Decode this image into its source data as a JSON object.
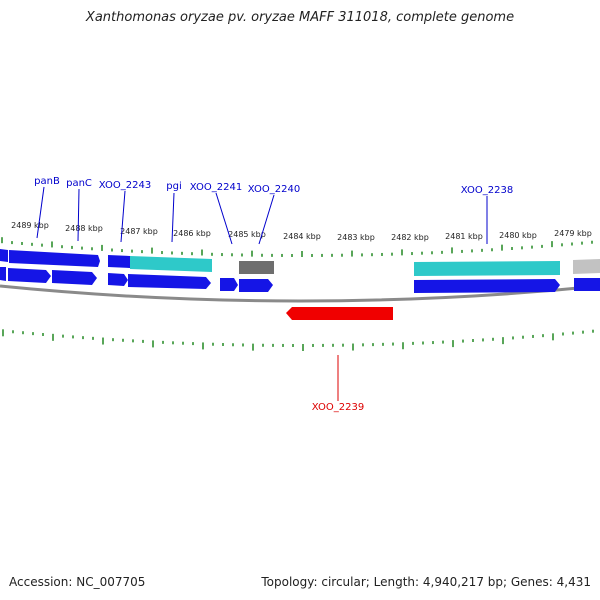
{
  "title": "Xanthomonas oryzae pv. oryzae MAFF 311018, complete genome",
  "footer": {
    "accession": "Accession: NC_007705",
    "summary": "Topology: circular; Length: 4,940,217 bp; Genes: 4,431"
  },
  "colors": {
    "forward_gene": "#1515e6",
    "reverse_gene": "#f00000",
    "blue_label": "#0000cc",
    "red_label": "#dd0000",
    "tick": "#2f8f2f",
    "highlight_cyan": "#2ec9c9",
    "gray_feature": "#6e6e6e",
    "light_gray_feature": "#c2c2c2",
    "backbone": "#8a8a8a"
  },
  "kbp_labels": [
    "2489 kbp",
    "2488 kbp",
    "2487 kbp",
    "2486 kbp",
    "2485 kbp",
    "2484 kbp",
    "2483 kbp",
    "2482 kbp",
    "2481 kbp",
    "2480 kbp",
    "2479 kbp"
  ],
  "gene_labels": [
    {
      "text": "panB",
      "strand": "forward"
    },
    {
      "text": "panC",
      "strand": "forward"
    },
    {
      "text": "XOO_2243",
      "strand": "forward"
    },
    {
      "text": "pgi",
      "strand": "forward"
    },
    {
      "text": "XOO_2241",
      "strand": "forward"
    },
    {
      "text": "XOO_2240",
      "strand": "forward"
    },
    {
      "text": "XOO_2238",
      "strand": "forward"
    },
    {
      "text": "XOO_2239",
      "strand": "reverse"
    }
  ]
}
